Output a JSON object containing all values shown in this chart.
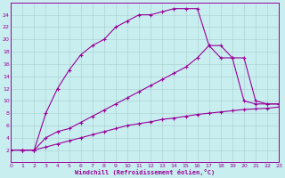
{
  "xlabel": "Windchill (Refroidissement éolien,°C)",
  "bg_color": "#c8eef0",
  "line_color": "#990099",
  "grid_color": "#aacccc",
  "xlim": [
    0,
    23
  ],
  "ylim": [
    0,
    26
  ],
  "xticks": [
    0,
    1,
    2,
    3,
    4,
    5,
    6,
    7,
    8,
    9,
    10,
    11,
    12,
    13,
    14,
    15,
    16,
    17,
    18,
    19,
    20,
    21,
    22,
    23
  ],
  "yticks": [
    2,
    4,
    6,
    8,
    10,
    12,
    14,
    16,
    18,
    20,
    22,
    24
  ],
  "series1_x": [
    0,
    1,
    2,
    3,
    4,
    5,
    6,
    7,
    8,
    9,
    10,
    11,
    12,
    13,
    14,
    15,
    16,
    17,
    18,
    19,
    20,
    21,
    22,
    23
  ],
  "series1_y": [
    2,
    2,
    2,
    2.5,
    3,
    3.5,
    4,
    4.5,
    5,
    5.5,
    6,
    6.3,
    6.6,
    7,
    7.2,
    7.5,
    7.8,
    8,
    8.2,
    8.4,
    8.6,
    8.7,
    8.8,
    9
  ],
  "series2_x": [
    0,
    1,
    2,
    3,
    4,
    5,
    6,
    7,
    8,
    9,
    10,
    11,
    12,
    13,
    14,
    15,
    16,
    17,
    18,
    19,
    20,
    21,
    22,
    23
  ],
  "series2_y": [
    2,
    2,
    2,
    4,
    5,
    5.5,
    6.5,
    7.5,
    8.5,
    9.5,
    10.5,
    11.5,
    12.5,
    13.5,
    14.5,
    15.5,
    17,
    19,
    19,
    17,
    10,
    9.5,
    9.5,
    9.5
  ],
  "series3_x": [
    1,
    2,
    3,
    4,
    5,
    6,
    7,
    8,
    9,
    10,
    11,
    12,
    13,
    14,
    15,
    16,
    17,
    18,
    19,
    20,
    21,
    22,
    23
  ],
  "series3_y": [
    2,
    2,
    8,
    12,
    15,
    17.5,
    19,
    20,
    22,
    23,
    24,
    24,
    24.5,
    25,
    25,
    25,
    19,
    17,
    17,
    17,
    10,
    9.5,
    9.5
  ]
}
